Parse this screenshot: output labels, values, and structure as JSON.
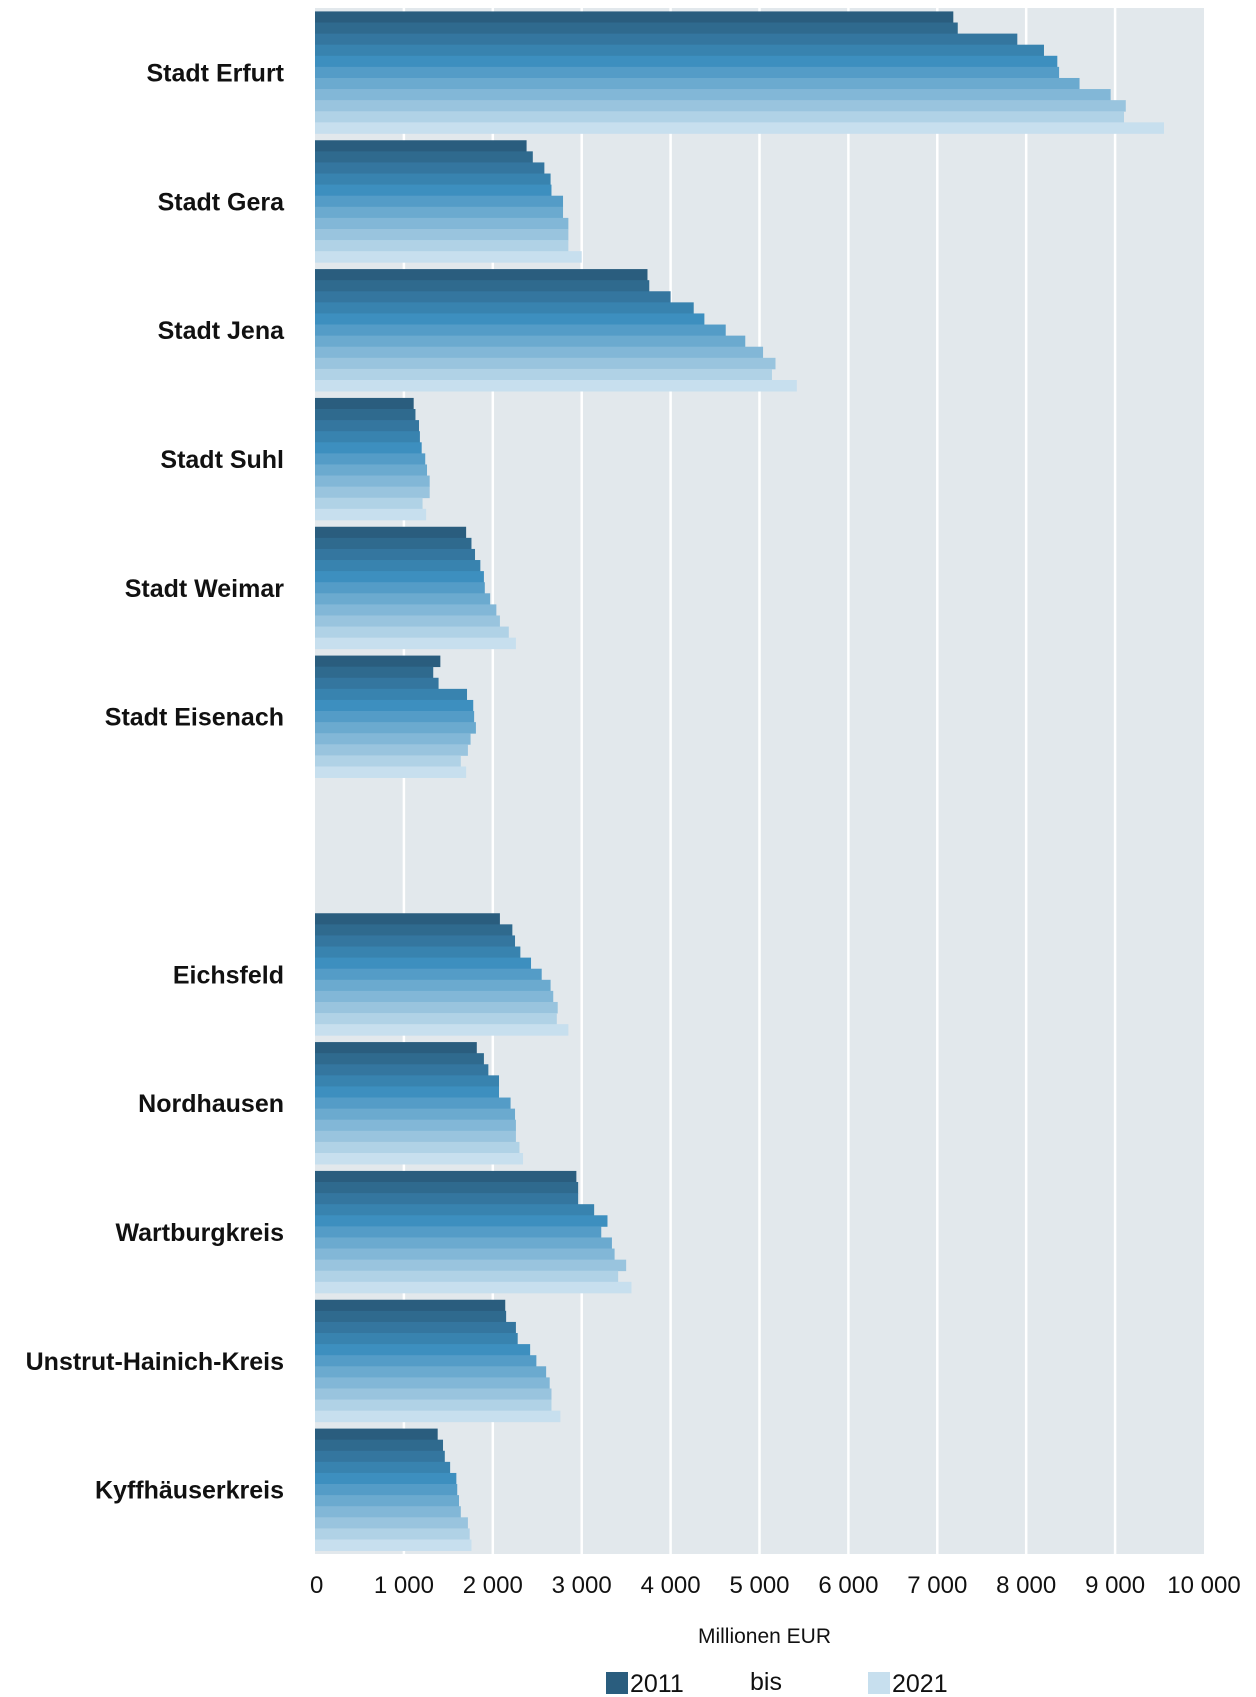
{
  "chart_data": {
    "type": "bar",
    "orientation": "horizontal",
    "categories": [
      "Stadt Erfurt",
      "Stadt Gera",
      "Stadt Jena",
      "Stadt Suhl",
      "Stadt Weimar",
      "Stadt Eisenach",
      "",
      "Eichsfeld",
      "Nordhausen",
      "Wartburgkreis",
      "Unstrut-Hainich-Kreis",
      "Kyffhäuserkreis"
    ],
    "years": [
      2011,
      2012,
      2013,
      2014,
      2015,
      2016,
      2017,
      2018,
      2019,
      2020,
      2021
    ],
    "values": [
      [
        7180,
        7230,
        7900,
        8200,
        8350,
        8370,
        8600,
        8950,
        9120,
        9100,
        9550
      ],
      [
        2380,
        2450,
        2580,
        2650,
        2660,
        2790,
        2790,
        2850,
        2850,
        2850,
        3000
      ],
      [
        3740,
        3760,
        4000,
        4260,
        4380,
        4620,
        4840,
        5040,
        5180,
        5140,
        5420
      ],
      [
        1110,
        1130,
        1170,
        1180,
        1200,
        1240,
        1260,
        1290,
        1290,
        1210,
        1250
      ],
      [
        1700,
        1760,
        1800,
        1860,
        1900,
        1910,
        1970,
        2040,
        2080,
        2180,
        2260
      ],
      [
        1410,
        1330,
        1390,
        1710,
        1780,
        1790,
        1810,
        1750,
        1720,
        1640,
        1700
      ],
      [
        null,
        null,
        null,
        null,
        null,
        null,
        null,
        null,
        null,
        null,
        null
      ],
      [
        2080,
        2220,
        2250,
        2310,
        2430,
        2550,
        2650,
        2680,
        2730,
        2720,
        2850
      ],
      [
        1820,
        1900,
        1950,
        2070,
        2070,
        2200,
        2250,
        2260,
        2260,
        2300,
        2340
      ],
      [
        2940,
        2960,
        2960,
        3140,
        3290,
        3220,
        3340,
        3370,
        3500,
        3410,
        3560
      ],
      [
        2140,
        2150,
        2260,
        2280,
        2420,
        2490,
        2600,
        2640,
        2660,
        2660,
        2760
      ],
      [
        1380,
        1440,
        1460,
        1520,
        1590,
        1600,
        1620,
        1640,
        1720,
        1740,
        1760
      ]
    ],
    "xlim": [
      0,
      10000
    ],
    "xticks": [
      "0",
      "1 000",
      "2 000",
      "3 000",
      "4 000",
      "5 000",
      "6 000",
      "7 000",
      "8 000",
      "9 000",
      "10 000"
    ],
    "xlabel": "Millionen EUR",
    "grid": true,
    "legend": {
      "position": "bottom",
      "start": "2011",
      "middle": "bis",
      "end": "2021"
    },
    "colors": {
      "first": "#2a5d7e",
      "mid": "#3d8fbf",
      "last": "#c7dfee",
      "plot_background": "#e2e8ec",
      "grid": "#ffffff"
    }
  }
}
